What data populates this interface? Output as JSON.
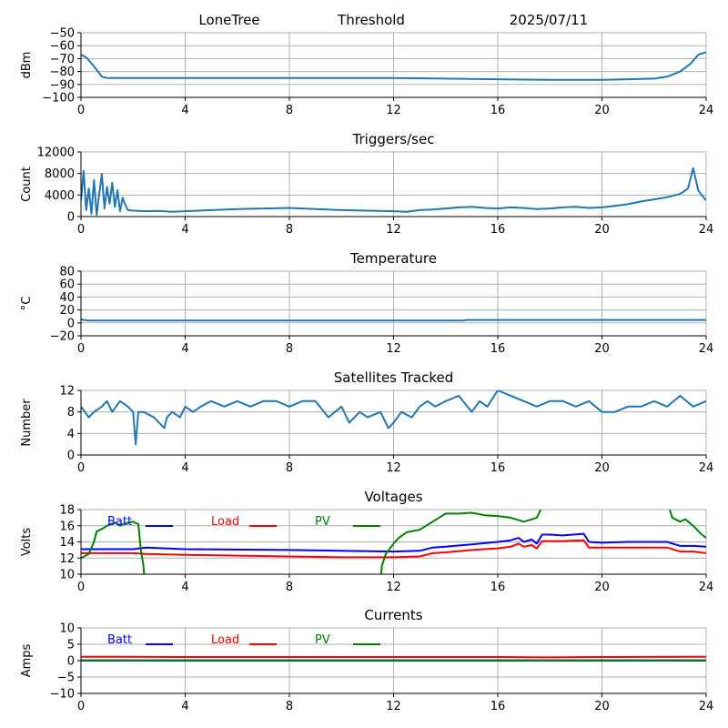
{
  "header": {
    "station": "LoneTree",
    "mode": "Threshold",
    "date": "2025/07/11"
  },
  "chart_data": [
    {
      "type": "line",
      "title": "",
      "xlabel": "",
      "ylabel": "dBm",
      "xlim": [
        0,
        24
      ],
      "ylim": [
        -100,
        -50
      ],
      "xticks": [
        0,
        4,
        8,
        12,
        16,
        20,
        24
      ],
      "yticks": [
        -100,
        -90,
        -80,
        -70,
        -60,
        -50
      ],
      "grid": true,
      "series": [
        {
          "color": "#1f77b4",
          "x": [
            0,
            0.2,
            0.5,
            0.8,
            1.0,
            2,
            4,
            6,
            8,
            10,
            12,
            14,
            16,
            18,
            19,
            20,
            21,
            22,
            22.5,
            23,
            23.4,
            23.7,
            24
          ],
          "y": [
            -67,
            -69,
            -76,
            -84,
            -85,
            -85,
            -85,
            -85,
            -85,
            -85,
            -85,
            -85.5,
            -86,
            -86.5,
            -86.5,
            -86.5,
            -86,
            -85.5,
            -84,
            -80,
            -74,
            -67,
            -65
          ]
        }
      ]
    },
    {
      "type": "line",
      "title": "Triggers/sec",
      "xlabel": "",
      "ylabel": "Count",
      "xlim": [
        0,
        24
      ],
      "ylim": [
        0,
        12000
      ],
      "xticks": [
        0,
        4,
        8,
        12,
        16,
        20,
        24
      ],
      "yticks": [
        0,
        4000,
        8000,
        12000
      ],
      "grid": true,
      "series": [
        {
          "color": "#1f77b4",
          "x": [
            0,
            0.1,
            0.2,
            0.3,
            0.4,
            0.5,
            0.6,
            0.7,
            0.8,
            0.9,
            1.0,
            1.1,
            1.2,
            1.3,
            1.4,
            1.5,
            1.6,
            1.7,
            1.8,
            2.0,
            2.5,
            3,
            3.5,
            4,
            5,
            6,
            7,
            8,
            9,
            10,
            11,
            12,
            12.5,
            13,
            13.5,
            14,
            14.5,
            15,
            15.5,
            16,
            16.5,
            17,
            17.5,
            18,
            18.5,
            19,
            19.5,
            20,
            20.5,
            21,
            21.5,
            22,
            22.5,
            23,
            23.3,
            23.5,
            23.7,
            24
          ],
          "y": [
            3000,
            8500,
            1200,
            5200,
            500,
            6800,
            300,
            4200,
            7900,
            1500,
            5500,
            2400,
            6300,
            1800,
            4900,
            1000,
            3500,
            2200,
            1200,
            1100,
            1000,
            1050,
            900,
            1000,
            1200,
            1400,
            1500,
            1600,
            1400,
            1200,
            1100,
            1000,
            900,
            1200,
            1300,
            1500,
            1700,
            1800,
            1600,
            1500,
            1700,
            1600,
            1400,
            1500,
            1700,
            1800,
            1600,
            1700,
            2000,
            2300,
            2800,
            3200,
            3600,
            4200,
            5200,
            9000,
            4800,
            3000
          ]
        }
      ]
    },
    {
      "type": "line",
      "title": "Temperature",
      "xlabel": "",
      "ylabel": "°C",
      "xlim": [
        0,
        24
      ],
      "ylim": [
        -20,
        80
      ],
      "xticks": [
        0,
        4,
        8,
        12,
        16,
        20,
        24
      ],
      "yticks": [
        -20,
        0,
        20,
        40,
        60,
        80
      ],
      "grid": true,
      "series": [
        {
          "color": "#1f77b4",
          "x": [
            0,
            0.1,
            0.3,
            14.7,
            14.75,
            24
          ],
          "y": [
            5.5,
            4.5,
            3.5,
            3.5,
            4.5,
            4.5
          ]
        }
      ]
    },
    {
      "type": "line",
      "title": "Satellites Tracked",
      "xlabel": "",
      "ylabel": "Number",
      "xlim": [
        0,
        24
      ],
      "ylim": [
        0,
        12
      ],
      "xticks": [
        0,
        4,
        8,
        12,
        16,
        20,
        24
      ],
      "yticks": [
        0,
        4,
        8,
        12
      ],
      "grid": true,
      "series": [
        {
          "color": "#1f77b4",
          "x": [
            0,
            0.3,
            0.5,
            0.8,
            1.0,
            1.2,
            1.5,
            1.8,
            2.0,
            2.1,
            2.2,
            2.4,
            2.8,
            3.2,
            3.3,
            3.5,
            3.8,
            4.0,
            4.3,
            4.6,
            5.0,
            5.5,
            6.0,
            6.5,
            7.0,
            7.5,
            8.0,
            8.5,
            9.0,
            9.5,
            10.0,
            10.3,
            10.7,
            11.0,
            11.5,
            11.8,
            12.0,
            12.3,
            12.7,
            13.0,
            13.3,
            13.6,
            14.0,
            14.5,
            15.0,
            15.3,
            15.6,
            16.0,
            16.5,
            17.0,
            17.5,
            18.0,
            18.5,
            19.0,
            19.5,
            20.0,
            20.5,
            21.0,
            21.5,
            22.0,
            22.5,
            23.0,
            23.5,
            24
          ],
          "y": [
            9,
            7,
            8,
            9,
            10,
            8,
            10,
            9,
            8,
            2,
            8,
            8,
            7,
            5,
            7,
            8,
            7,
            9,
            8,
            9,
            10,
            9,
            10,
            9,
            10,
            10,
            9,
            10,
            10,
            7,
            9,
            6,
            8,
            7,
            8,
            5,
            6,
            8,
            7,
            9,
            10,
            9,
            10,
            11,
            8,
            10,
            9,
            12,
            11,
            10,
            9,
            10,
            10,
            9,
            10,
            8,
            8,
            9,
            9,
            10,
            9,
            11,
            9,
            10
          ]
        }
      ]
    },
    {
      "type": "line",
      "title": "Voltages",
      "xlabel": "",
      "ylabel": "Volts",
      "xlim": [
        0,
        24
      ],
      "ylim": [
        10,
        18
      ],
      "xticks": [
        0,
        4,
        8,
        12,
        16,
        20,
        24
      ],
      "yticks": [
        10,
        12,
        14,
        16,
        18
      ],
      "grid": true,
      "legend": "top-left",
      "series": [
        {
          "name": "Batt",
          "color": "#0000ff",
          "x": [
            0,
            2,
            2.5,
            4,
            8,
            10,
            12,
            13,
            13.5,
            14,
            15,
            16,
            16.5,
            16.8,
            17,
            17.3,
            17.5,
            17.7,
            18,
            18.5,
            19.3,
            19.5,
            20,
            21,
            22.5,
            23,
            23.5,
            24
          ],
          "y": [
            13.1,
            13.1,
            13.3,
            13.1,
            13.0,
            12.9,
            12.8,
            12.9,
            13.3,
            13.4,
            13.7,
            14.0,
            14.2,
            14.5,
            14.0,
            14.3,
            13.8,
            14.9,
            14.9,
            14.8,
            15.0,
            14.0,
            13.9,
            14.0,
            14.0,
            13.5,
            13.5,
            13.4
          ]
        },
        {
          "name": "Load",
          "color": "#ff0000",
          "x": [
            0,
            2,
            2.5,
            4,
            8,
            10,
            12,
            13,
            13.5,
            14,
            15,
            16,
            16.5,
            16.8,
            17,
            17.3,
            17.5,
            17.7,
            18,
            18.5,
            19.3,
            19.5,
            20,
            21,
            22.5,
            23,
            23.5,
            24
          ],
          "y": [
            12.6,
            12.6,
            12.5,
            12.4,
            12.2,
            12.1,
            12.1,
            12.2,
            12.6,
            12.7,
            13.0,
            13.2,
            13.4,
            13.8,
            13.4,
            13.6,
            13.2,
            14.1,
            14.1,
            14.1,
            14.2,
            13.3,
            13.3,
            13.3,
            13.3,
            12.8,
            12.8,
            12.6
          ]
        },
        {
          "name": "PV",
          "color": "#008000",
          "x": [
            0,
            0.3,
            0.5,
            0.6,
            0.8,
            1.0,
            1.3,
            1.5,
            1.7,
            2.0,
            2.2,
            2.3,
            2.4,
            2.45,
            11.5,
            11.55,
            11.7,
            12.0,
            12.2,
            12.5,
            13,
            13.5,
            14,
            14.5,
            15,
            15.5,
            16,
            16.5,
            17,
            17.5,
            17.8,
            22.5,
            22.7,
            23,
            23.2,
            23.5,
            23.8,
            24
          ],
          "y": [
            12.0,
            12.5,
            14.0,
            15.3,
            15.6,
            16.0,
            16.4,
            16.0,
            16.3,
            16.5,
            16.2,
            13.0,
            11.0,
            9.0,
            9.0,
            11.0,
            12.5,
            13.8,
            14.5,
            15.2,
            15.5,
            16.5,
            17.5,
            17.5,
            17.6,
            17.3,
            17.2,
            17.0,
            16.5,
            17.0,
            19.0,
            19.0,
            17.0,
            16.5,
            16.8,
            16.0,
            15.0,
            14.5
          ]
        }
      ]
    },
    {
      "type": "line",
      "title": "Currents",
      "xlabel": "",
      "ylabel": "Amps",
      "xlim": [
        0,
        24
      ],
      "ylim": [
        -10,
        10
      ],
      "xticks": [
        0,
        4,
        8,
        12,
        16,
        20,
        24
      ],
      "yticks": [
        -10,
        -5,
        0,
        5,
        10
      ],
      "grid": true,
      "legend": "top-left",
      "series": [
        {
          "name": "Batt",
          "color": "#0000ff",
          "x": [
            0,
            24
          ],
          "y": [
            0.1,
            0.1
          ]
        },
        {
          "name": "Load",
          "color": "#ff0000",
          "x": [
            0,
            4,
            8,
            12,
            16,
            18,
            20,
            24
          ],
          "y": [
            1.2,
            1.1,
            1.1,
            1.1,
            1.1,
            1.0,
            1.1,
            1.2
          ]
        },
        {
          "name": "PV",
          "color": "#008000",
          "x": [
            0,
            24
          ],
          "y": [
            0.0,
            0.0
          ]
        }
      ]
    }
  ]
}
